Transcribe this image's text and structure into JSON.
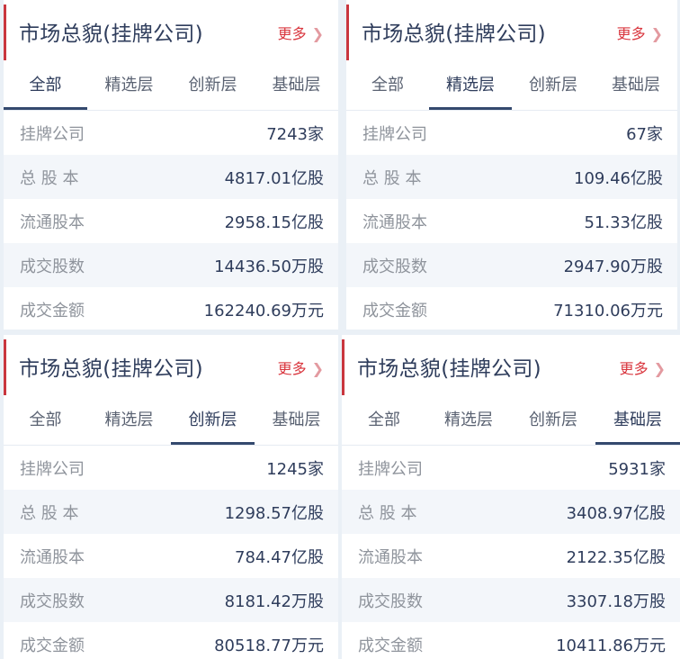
{
  "panels": [
    {
      "title": "市场总貌(挂牌公司)",
      "more": "更多",
      "active_tab": 0,
      "tabs": [
        "全部",
        "精选层",
        "创新层",
        "基础层"
      ],
      "rows": [
        {
          "label": "挂牌公司",
          "value": "7243家"
        },
        {
          "label": "总 股 本",
          "value": "4817.01亿股"
        },
        {
          "label": "流通股本",
          "value": "2958.15亿股"
        },
        {
          "label": "成交股数",
          "value": "14436.50万股"
        },
        {
          "label": "成交金额",
          "value": "162240.69万元"
        }
      ]
    },
    {
      "title": "市场总貌(挂牌公司)",
      "more": "更多",
      "active_tab": 1,
      "tabs": [
        "全部",
        "精选层",
        "创新层",
        "基础层"
      ],
      "rows": [
        {
          "label": "挂牌公司",
          "value": "67家"
        },
        {
          "label": "总 股 本",
          "value": "109.46亿股"
        },
        {
          "label": "流通股本",
          "value": "51.33亿股"
        },
        {
          "label": "成交股数",
          "value": "2947.90万股"
        },
        {
          "label": "成交金额",
          "value": "71310.06万元"
        }
      ]
    },
    {
      "title": "市场总貌(挂牌公司)",
      "more": "更多",
      "active_tab": 2,
      "tabs": [
        "全部",
        "精选层",
        "创新层",
        "基础层"
      ],
      "rows": [
        {
          "label": "挂牌公司",
          "value": "1245家"
        },
        {
          "label": "总 股 本",
          "value": "1298.57亿股"
        },
        {
          "label": "流通股本",
          "value": "784.47亿股"
        },
        {
          "label": "成交股数",
          "value": "8181.42万股"
        },
        {
          "label": "成交金额",
          "value": "80518.77万元"
        }
      ]
    },
    {
      "title": "市场总貌(挂牌公司)",
      "more": "更多",
      "active_tab": 3,
      "tabs": [
        "全部",
        "精选层",
        "创新层",
        "基础层"
      ],
      "rows": [
        {
          "label": "挂牌公司",
          "value": "5931家"
        },
        {
          "label": "总 股 本",
          "value": "3408.97亿股"
        },
        {
          "label": "流通股本",
          "value": "2122.35亿股"
        },
        {
          "label": "成交股数",
          "value": "3307.18万股"
        },
        {
          "label": "成交金额",
          "value": "10411.86万元"
        }
      ]
    }
  ],
  "colors": {
    "accent_red": "#c9363e",
    "navy": "#2f3d5c",
    "tab_underline": "#34496e"
  },
  "icons": {
    "more": "chevron-right-icon"
  }
}
